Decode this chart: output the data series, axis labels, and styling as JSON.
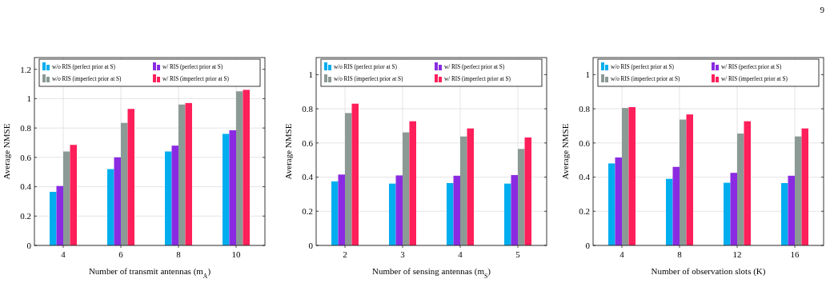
{
  "chart_data": [
    {
      "type": "bar",
      "categories": [
        "4",
        "6",
        "8",
        "10"
      ],
      "xlabel": "Number of transmit antennas (m$_{A}$)",
      "ylabel": "Average NMSE",
      "ylim": [
        0,
        1.28
      ],
      "yticks": [
        0,
        0.2,
        0.4,
        0.6,
        0.8,
        1,
        1.2
      ],
      "grid": true,
      "legend": "top",
      "series": [
        {
          "name": "w/o RIS (perfect prior at S)",
          "color": "#00aeef",
          "values": [
            0.365,
            0.52,
            0.64,
            0.76
          ]
        },
        {
          "name": "w/ RIS (perfect prior at S)",
          "color": "#8a2be2",
          "values": [
            0.405,
            0.6,
            0.68,
            0.785
          ]
        },
        {
          "name": "w/o RIS (imperfect prior at S)",
          "color": "#8c9a96",
          "values": [
            0.64,
            0.835,
            0.96,
            1.05
          ]
        },
        {
          "name": "w/ RIS (imperfect prior at S)",
          "color": "#ff1f5a",
          "values": [
            0.685,
            0.93,
            0.97,
            1.06
          ]
        }
      ]
    },
    {
      "type": "bar",
      "categories": [
        "2",
        "3",
        "4",
        "5"
      ],
      "xlabel": "Number of sensing antennas (m$_{S}$)",
      "ylabel": "Average NMSE",
      "ylim": [
        0,
        1.1
      ],
      "yticks": [
        0,
        0.2,
        0.4,
        0.6,
        0.8,
        1
      ],
      "grid": true,
      "legend": "top",
      "series": [
        {
          "name": "w/o RIS (perfect prior at S)",
          "color": "#00aeef",
          "values": [
            0.375,
            0.362,
            0.365,
            0.362
          ]
        },
        {
          "name": "w/ RIS (perfect prior at S)",
          "color": "#8a2be2",
          "values": [
            0.415,
            0.41,
            0.408,
            0.412
          ]
        },
        {
          "name": "w/o RIS (imperfect prior at S)",
          "color": "#8c9a96",
          "values": [
            0.775,
            0.662,
            0.638,
            0.565
          ]
        },
        {
          "name": "w/ RIS (imperfect prior at S)",
          "color": "#ff1f5a",
          "values": [
            0.83,
            0.727,
            0.685,
            0.632
          ]
        }
      ]
    },
    {
      "type": "bar",
      "categories": [
        "4",
        "8",
        "12",
        "16"
      ],
      "xlabel": "Number of observation slots (K)",
      "ylabel": "Average NMSE",
      "ylim": [
        0,
        1.1
      ],
      "yticks": [
        0,
        0.2,
        0.4,
        0.6,
        0.8,
        1
      ],
      "grid": true,
      "legend": "top",
      "annotations": [
        "9"
      ],
      "series": [
        {
          "name": "w/o RIS (perfect prior at S)",
          "color": "#00aeef",
          "values": [
            0.48,
            0.39,
            0.367,
            0.365
          ]
        },
        {
          "name": "w/ RIS (perfect prior at S)",
          "color": "#8a2be2",
          "values": [
            0.515,
            0.46,
            0.425,
            0.408
          ]
        },
        {
          "name": "w/o RIS (imperfect prior at S)",
          "color": "#8c9a96",
          "values": [
            0.805,
            0.737,
            0.655,
            0.638
          ]
        },
        {
          "name": "w/ RIS (imperfect prior at S)",
          "color": "#ff1f5a",
          "values": [
            0.81,
            0.767,
            0.727,
            0.685
          ]
        }
      ]
    }
  ]
}
